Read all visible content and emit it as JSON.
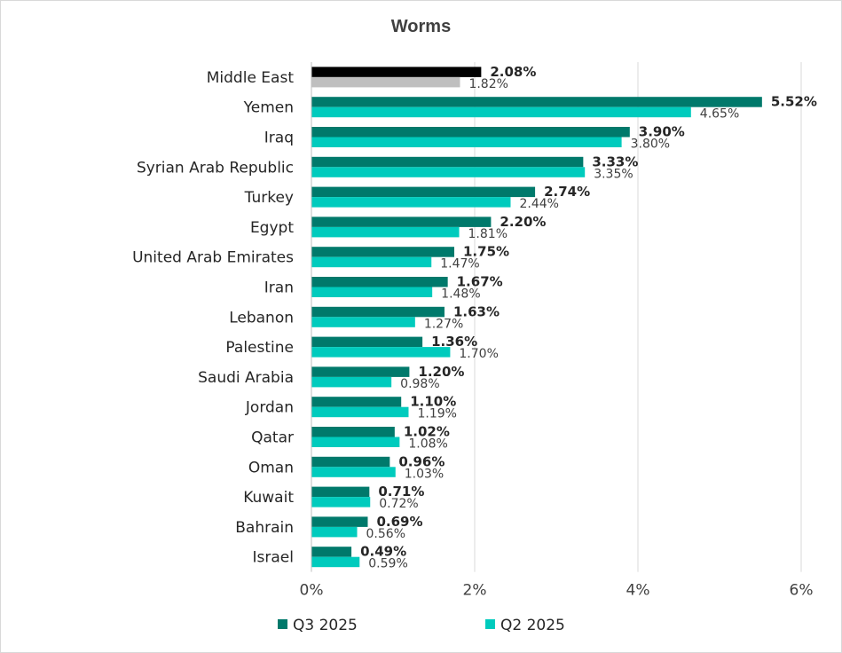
{
  "chart_data": {
    "type": "bar",
    "orientation": "horizontal",
    "title": "Worms",
    "categories": [
      "Middle East",
      "Yemen",
      "Iraq",
      "Syrian Arab Republic",
      "Turkey",
      "Egypt",
      "United Arab Emirates",
      "Iran",
      "Lebanon",
      "Palestine",
      "Saudi Arabia",
      "Jordan",
      "Qatar",
      "Oman",
      "Kuwait",
      "Bahrain",
      "Israel"
    ],
    "series": [
      {
        "name": "Q3 2025",
        "color": "#00796b",
        "values": [
          2.08,
          5.52,
          3.9,
          3.33,
          2.74,
          2.2,
          1.75,
          1.67,
          1.63,
          1.36,
          1.2,
          1.1,
          1.02,
          0.96,
          0.71,
          0.69,
          0.49
        ],
        "labels": [
          "2.08%",
          "5.52%",
          "3.90%",
          "3.33%",
          "2.74%",
          "2.20%",
          "1.75%",
          "1.67%",
          "1.63%",
          "1.36%",
          "1.20%",
          "1.10%",
          "1.02%",
          "0.96%",
          "0.71%",
          "0.69%",
          "0.49%"
        ]
      },
      {
        "name": "Q2 2025",
        "color": "#00cbbd",
        "values": [
          1.82,
          4.65,
          3.8,
          3.35,
          2.44,
          1.81,
          1.47,
          1.48,
          1.27,
          1.7,
          0.98,
          1.19,
          1.08,
          1.03,
          0.72,
          0.56,
          0.59
        ],
        "labels": [
          "1.82%",
          "4.65%",
          "3.80%",
          "3.35%",
          "2.44%",
          "1.81%",
          "1.47%",
          "1.48%",
          "1.27%",
          "1.70%",
          "0.98%",
          "1.19%",
          "1.08%",
          "1.03%",
          "0.72%",
          "0.56%",
          "0.59%"
        ]
      }
    ],
    "highlight": {
      "category": "Middle East",
      "q3_color": "#000000",
      "q2_color": "#bfbfbf"
    },
    "xlim": [
      0,
      6
    ],
    "xticks": [
      0,
      2,
      4,
      6
    ],
    "xtick_labels": [
      "0%",
      "2%",
      "4%",
      "6%"
    ],
    "grid": "vertical",
    "legend": "bottom"
  }
}
